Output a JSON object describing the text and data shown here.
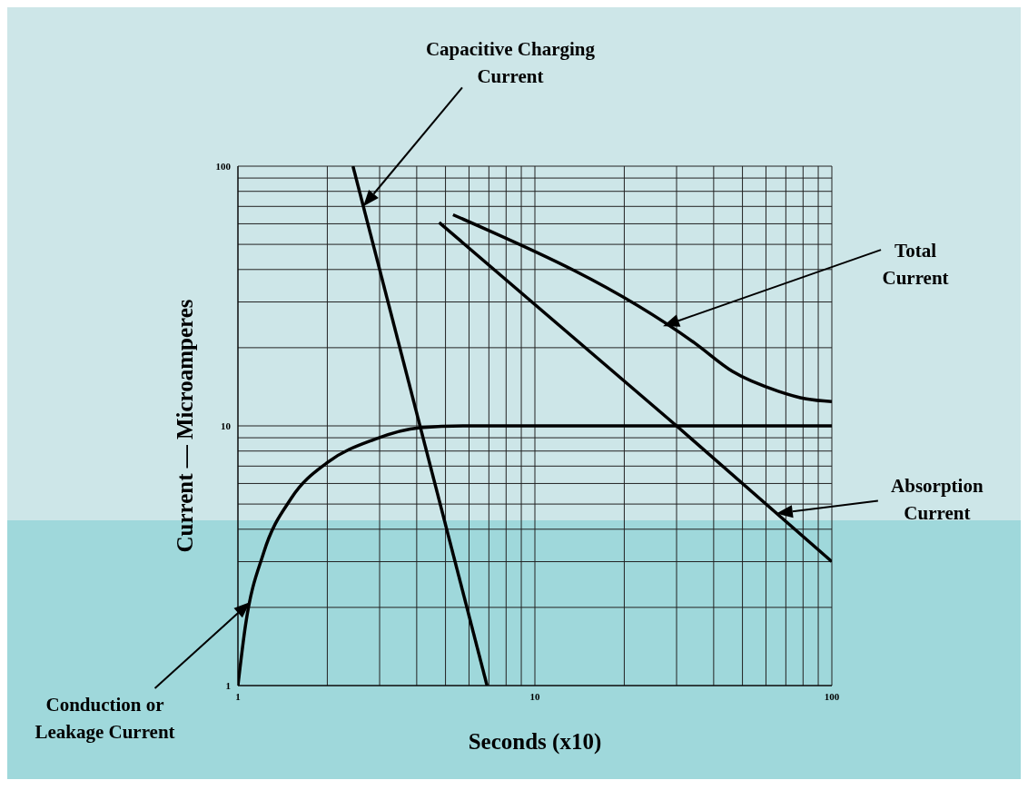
{
  "chart_data": {
    "type": "line",
    "xlabel": "Seconds (x10)",
    "ylabel": "Current — Microamperes",
    "log": "xy",
    "xlim": [
      1,
      100
    ],
    "ylim": [
      1,
      100
    ],
    "xticks": [
      1,
      {
        "value": 2,
        "label": null
      },
      {
        "value": 3,
        "label": null
      },
      {
        "value": 4,
        "label": null
      },
      {
        "value": 5,
        "label": null
      },
      {
        "value": 6,
        "label": null
      },
      {
        "value": 7,
        "label": null
      },
      {
        "value": 8,
        "label": null
      },
      {
        "value": 9,
        "label": null
      },
      10,
      {
        "value": 20,
        "label": null
      },
      {
        "value": 30,
        "label": null
      },
      {
        "value": 40,
        "label": null
      },
      {
        "value": 50,
        "label": null
      },
      {
        "value": 60,
        "label": null
      },
      {
        "value": 70,
        "label": null
      },
      {
        "value": 80,
        "label": null
      },
      {
        "value": 90,
        "label": null
      },
      100
    ],
    "yticks": [
      1,
      {
        "value": 2,
        "label": null
      },
      {
        "value": 3,
        "label": null
      },
      {
        "value": 4,
        "label": null
      },
      {
        "value": 5,
        "label": null
      },
      {
        "value": 6,
        "label": null
      },
      {
        "value": 7,
        "label": null
      },
      {
        "value": 8,
        "label": null
      },
      {
        "value": 9,
        "label": null
      },
      10,
      {
        "value": 20,
        "label": null
      },
      {
        "value": 30,
        "label": null
      },
      {
        "value": 40,
        "label": null
      },
      {
        "value": 50,
        "label": null
      },
      {
        "value": 60,
        "label": null
      },
      {
        "value": 70,
        "label": null
      },
      {
        "value": 80,
        "label": null
      },
      {
        "value": 90,
        "label": null
      },
      100
    ],
    "grid": true,
    "marker": "none",
    "line_style": "solid",
    "series": [
      {
        "color": "#000000",
        "x": [
          2.44,
          6.9
        ],
        "values": [
          100,
          1
        ]
      },
      {
        "color": "#000000",
        "x": [
          4.76,
          30,
          100
        ],
        "values": [
          60.7,
          10,
          3.0
        ]
      },
      {
        "color": "#000000",
        "x": [
          5.3,
          34.8,
          46.3,
          66,
          82,
          100
        ],
        "values": [
          65,
          20.7,
          16.2,
          13.6,
          12.7,
          12.4
        ]
      },
      {
        "color": "#000000",
        "x": [
          1,
          1.06,
          1.22,
          1.51,
          2.01,
          2.87,
          4.1,
          5.85,
          100
        ],
        "values": [
          1,
          1.7,
          3.24,
          5.25,
          7.25,
          8.86,
          9.84,
          10,
          10
        ]
      }
    ],
    "annotations": [
      "Capacitive Charging Current",
      "Total Current",
      "Absorption Current",
      "Conduction or Leakage Current"
    ]
  }
}
